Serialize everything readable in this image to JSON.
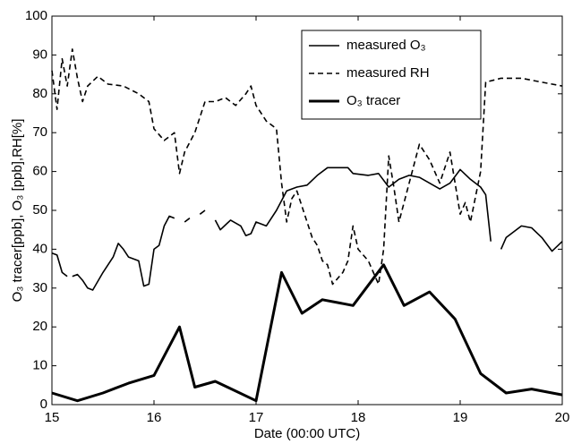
{
  "chart_data": {
    "type": "line",
    "xlabel": "Date (00:00 UTC)",
    "ylabel": "O₃ tracer[ppb], O₃ [ppb],RH[%]",
    "xlim": [
      15,
      20
    ],
    "xticks": [
      15,
      16,
      17,
      18,
      19,
      20
    ],
    "ylim": [
      0,
      100
    ],
    "yticks": [
      0,
      10,
      20,
      30,
      40,
      50,
      60,
      70,
      80,
      90,
      100
    ],
    "grid": false,
    "legend": "upper right",
    "series": [
      {
        "name": "measured O₃",
        "color": "#000000",
        "width": 1.6,
        "dash": "none",
        "x": [
          15.0,
          15.05,
          15.1,
          15.15,
          15.175,
          15.2,
          15.25,
          15.3,
          15.35,
          15.4,
          15.5,
          15.6,
          15.65,
          15.7,
          15.75,
          15.85,
          15.9,
          15.95,
          16.0,
          16.05,
          16.1,
          16.15,
          16.2,
          16.25,
          16.3,
          16.35,
          16.4,
          16.45,
          16.5,
          16.55,
          16.6,
          16.65,
          16.75,
          16.85,
          16.9,
          16.95,
          17.0,
          17.1,
          17.2,
          17.3,
          17.4,
          17.5,
          17.6,
          17.7,
          17.8,
          17.9,
          17.95,
          18.1,
          18.2,
          18.3,
          18.4,
          18.5,
          18.6,
          18.7,
          18.8,
          18.9,
          19.0,
          19.1,
          19.2,
          19.25,
          19.3,
          19.35,
          19.4,
          19.45,
          19.6,
          19.7,
          19.8,
          19.9,
          20.0
        ],
        "values": [
          39,
          38.5,
          34,
          33,
          null,
          33,
          33.5,
          32,
          30,
          29.5,
          34,
          38,
          41.5,
          40,
          38,
          37,
          30.5,
          31,
          40,
          41,
          46,
          48.5,
          48,
          null,
          47,
          48,
          null,
          49,
          50,
          null,
          47.5,
          45,
          47.5,
          46,
          43.5,
          44,
          47,
          46,
          50,
          55,
          56,
          56.5,
          59,
          61,
          61,
          61,
          59.5,
          59,
          59.5,
          56,
          58,
          59,
          58.5,
          57,
          55.5,
          57,
          60.5,
          58,
          56,
          54,
          42,
          null,
          40,
          43,
          46,
          45.5,
          43,
          39.5,
          42
        ]
      },
      {
        "name": "measured RH",
        "color": "#000000",
        "width": 1.6,
        "dash": "6 4",
        "x": [
          15.0,
          15.05,
          15.1,
          15.15,
          15.2,
          15.25,
          15.3,
          15.35,
          15.45,
          15.55,
          15.7,
          15.85,
          15.95,
          16.0,
          16.1,
          16.2,
          16.25,
          16.3,
          16.4,
          16.5,
          16.6,
          16.7,
          16.8,
          16.9,
          16.95,
          17.0,
          17.1,
          17.2,
          17.25,
          17.3,
          17.35,
          17.4,
          17.5,
          17.55,
          17.6,
          17.65,
          17.7,
          17.75,
          17.85,
          17.9,
          17.95,
          18.0,
          18.1,
          18.2,
          18.25,
          18.3,
          18.35,
          18.4,
          18.5,
          18.6,
          18.7,
          18.8,
          18.9,
          19.0,
          19.05,
          19.1,
          19.2,
          19.25,
          19.4,
          19.6,
          19.8,
          20.0
        ],
        "values": [
          86,
          76,
          89,
          82,
          91.5,
          84,
          78,
          82,
          84.5,
          82.5,
          82,
          80,
          78,
          71,
          68,
          70,
          59.5,
          65,
          70,
          78,
          78,
          79,
          77,
          80,
          82,
          77,
          73,
          71,
          57,
          47,
          53,
          55,
          47,
          43,
          41,
          37,
          36,
          31,
          34,
          37,
          46,
          40,
          37,
          31,
          40,
          64,
          56,
          47,
          57,
          67,
          63,
          57,
          65,
          49,
          52,
          47,
          60,
          83,
          84,
          84,
          83,
          82
        ]
      },
      {
        "name": "O₃ tracer",
        "color": "#000000",
        "width": 3,
        "dash": "none",
        "x": [
          15,
          15.25,
          15.5,
          15.75,
          16,
          16.25,
          16.4,
          16.6,
          17.0,
          17.25,
          17.45,
          17.65,
          17.95,
          18.25,
          18.45,
          18.7,
          18.95,
          19.2,
          19.45,
          19.7,
          20.0
        ],
        "values": [
          3,
          1,
          3,
          5.5,
          7.5,
          20,
          4.5,
          6,
          1,
          34,
          23.5,
          27,
          25.5,
          36,
          25.5,
          29,
          22,
          8,
          3,
          4,
          2.5
        ]
      }
    ]
  }
}
